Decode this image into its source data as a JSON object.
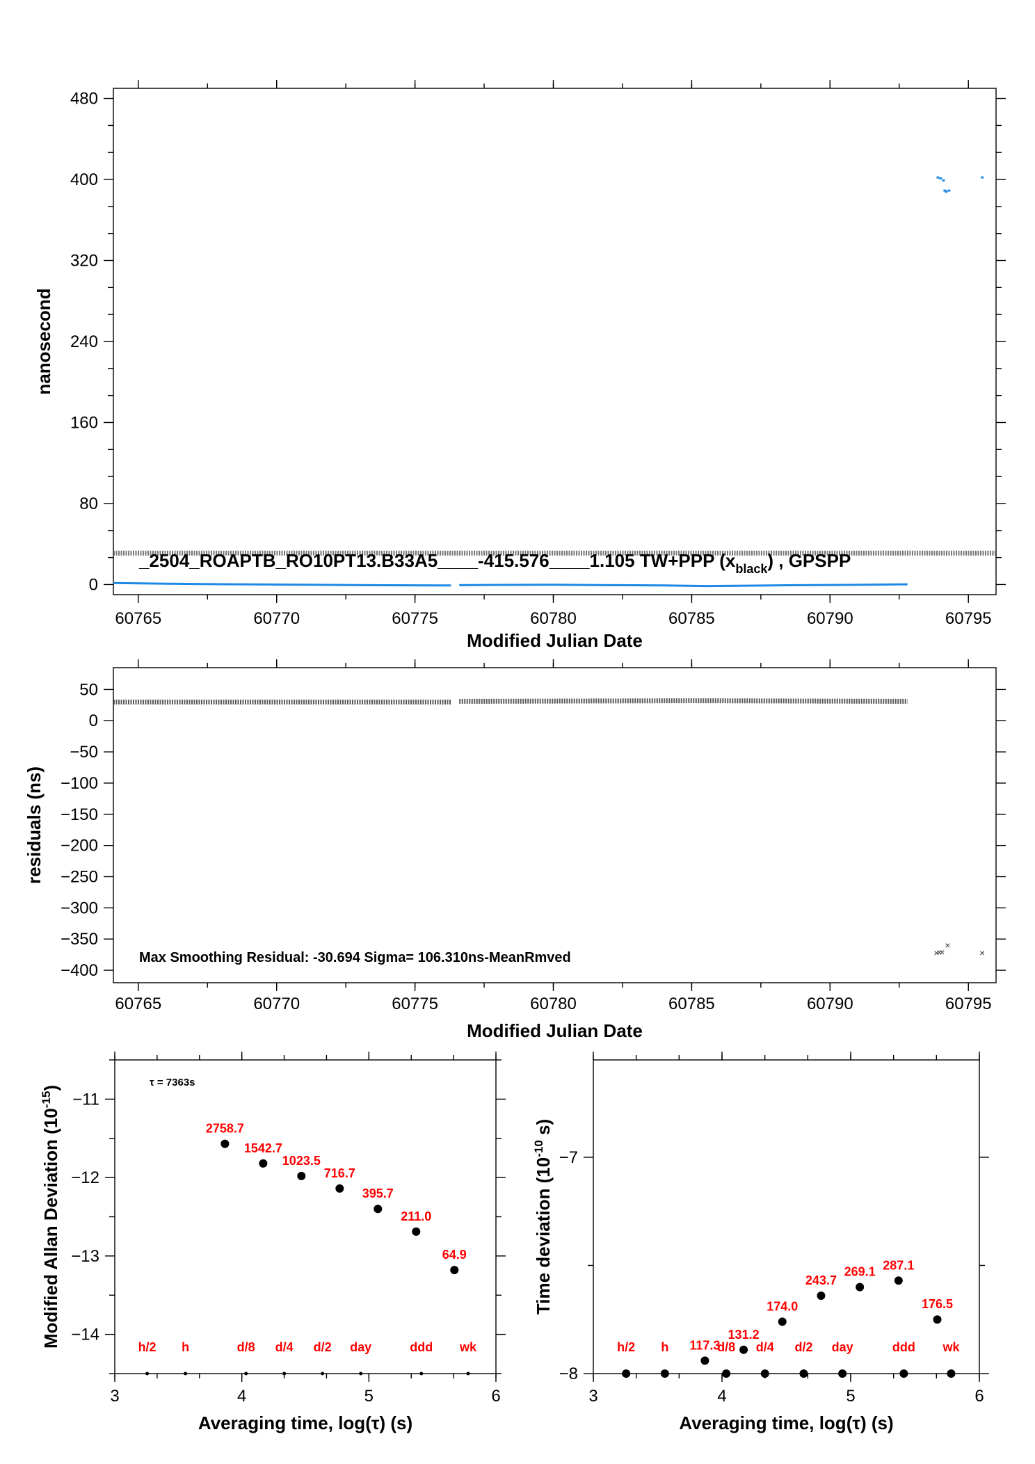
{
  "chart_data": [
    {
      "type": "scatter",
      "panel": "phase",
      "xlabel": "Modified Julian Date",
      "ylabel": "nanosecond",
      "xlim": [
        60764.1,
        60796.0
      ],
      "ylim": [
        -10,
        490
      ],
      "xticks": [
        60765,
        60770,
        60775,
        60780,
        60785,
        60790,
        60795
      ],
      "xtick_labels": [
        "60765",
        "60770",
        "60775",
        "60780",
        "60785",
        "60790",
        "60795"
      ],
      "yticks": [
        0,
        80,
        160,
        240,
        320,
        400,
        480
      ],
      "ytick_labels": [
        "0",
        "80",
        "160",
        "240",
        "320",
        "400",
        "480"
      ],
      "annotation": {
        "text": "_2504_ROAPTB_RO10PT13.B33A5____-415.576____1.105     TW+PPP (x",
        "sub": "black",
        "tail": ") ,  GPSPP"
      },
      "series": [
        {
          "color": "#1e88e5",
          "segments": [
            {
              "x": [
                60764.1,
                60766,
                60768,
                60770,
                60772,
                60774,
                60776.3
              ],
              "y": [
                1.5,
                0.8,
                0.3,
                0.0,
                -0.4,
                -0.7,
                -0.9
              ]
            },
            {
              "x": [
                60776.6,
                60778,
                60780,
                60782,
                60784,
                60785.5,
                60787,
                60789,
                60791,
                60792.8
              ],
              "y": [
                -0.6,
                -0.4,
                -0.2,
                -0.6,
                -0.9,
                -1.5,
                -1.2,
                -0.6,
                -0.3,
                0.2
              ]
            }
          ],
          "points": {
            "x": [
              60793.9,
              60794.0,
              60794.1,
              60794.15,
              60794.2,
              60794.3,
              60795.5
            ],
            "y": [
              402,
              401,
              399,
              389,
              388,
              389,
              402
            ]
          }
        },
        {
          "color": "#555555",
          "segments": [
            {
              "x": [
                60764.1,
                60796.0
              ],
              "y": [
                31,
                31
              ]
            }
          ]
        }
      ]
    },
    {
      "type": "scatter",
      "panel": "residuals",
      "xlabel": "Modified Julian Date",
      "ylabel": "residuals (ns)",
      "xlim": [
        60764.1,
        60796.0
      ],
      "ylim": [
        -420,
        85
      ],
      "xticks": [
        60765,
        60770,
        60775,
        60780,
        60785,
        60790,
        60795
      ],
      "xtick_labels": [
        "60765",
        "60770",
        "60775",
        "60780",
        "60785",
        "60790",
        "60795"
      ],
      "yticks": [
        50,
        0,
        -50,
        -100,
        -150,
        -200,
        -250,
        -300,
        -350,
        -400
      ],
      "ytick_labels": [
        "50",
        "0",
        "−50",
        "−100",
        "−150",
        "−200",
        "−250",
        "−300",
        "−350",
        "−400"
      ],
      "annotation": "Max Smoothing Residual: -30.694  Sigma= 106.310ns-MeanRmved",
      "series": [
        {
          "color": "#333333",
          "segments": [
            {
              "x": [
                60764.1,
                60776.3
              ],
              "y": [
                30,
                30
              ]
            },
            {
              "x": [
                60776.6,
                60785,
                60792.8
              ],
              "y": [
                31,
                32,
                31
              ]
            }
          ],
          "points": {
            "x": [
              60793.85,
              60793.95,
              60794.05,
              60794.25,
              60795.5
            ],
            "y": [
              -372,
              -371,
              -371,
              -360,
              -372
            ]
          }
        }
      ]
    },
    {
      "type": "scatter",
      "panel": "mdev",
      "xlabel": "Averaging time, log(τ) (s)",
      "ylabel": "Modified Allan Deviation (10",
      "ylabel_sup": "-15",
      "ylabel_tail": ")",
      "xlim": [
        3,
        6
      ],
      "ylim": [
        -14.5,
        -10.5
      ],
      "xticks": [
        3,
        4,
        5,
        6
      ],
      "xtick_labels": [
        "3",
        "4",
        "5",
        "6"
      ],
      "yticks": [
        -11,
        -12,
        -13,
        -14
      ],
      "ytick_labels": [
        "−11",
        "−12",
        "−13",
        "−14"
      ],
      "tau_note": "τ = 7363s",
      "points": [
        {
          "x": 3.867,
          "y": -11.57,
          "label": "2758.7"
        },
        {
          "x": 4.168,
          "y": -11.82,
          "label": "1542.7"
        },
        {
          "x": 4.469,
          "y": -11.98,
          "label": "1023.5"
        },
        {
          "x": 4.77,
          "y": -12.14,
          "label": "716.7"
        },
        {
          "x": 5.071,
          "y": -12.4,
          "label": "395.7"
        },
        {
          "x": 5.372,
          "y": -12.69,
          "label": "211.0"
        },
        {
          "x": 5.673,
          "y": -13.18,
          "label": "64.9"
        }
      ],
      "markers": [
        {
          "x": 3.255,
          "label": "h/2"
        },
        {
          "x": 3.556,
          "label": "h"
        },
        {
          "x": 4.033,
          "label": "d/8"
        },
        {
          "x": 4.334,
          "label": "d/4"
        },
        {
          "x": 4.635,
          "label": "d/2"
        },
        {
          "x": 4.936,
          "label": "day"
        },
        {
          "x": 5.413,
          "label": "ddd"
        },
        {
          "x": 5.781,
          "label": "wk"
        }
      ]
    },
    {
      "type": "scatter",
      "panel": "tdev",
      "xlabel": "Averaging time, log(τ) (s)",
      "ylabel": "Time deviation (10",
      "ylabel_sup": "-10",
      "ylabel_tail": " s)",
      "xlim": [
        3,
        6
      ],
      "ylim": [
        -8,
        -6.55
      ],
      "xticks": [
        3,
        4,
        5,
        6
      ],
      "xtick_labels": [
        "3",
        "4",
        "5",
        "6"
      ],
      "yticks": [
        -7,
        -8
      ],
      "ytick_labels": [
        "−7",
        "−8"
      ],
      "points": [
        {
          "x": 3.867,
          "y": -7.94,
          "label": "117.3"
        },
        {
          "x": 4.168,
          "y": -7.89,
          "label": "131.2"
        },
        {
          "x": 4.469,
          "y": -7.76,
          "label": "174.0"
        },
        {
          "x": 4.77,
          "y": -7.64,
          "label": "243.7"
        },
        {
          "x": 5.071,
          "y": -7.6,
          "label": "269.1"
        },
        {
          "x": 5.372,
          "y": -7.57,
          "label": "287.1"
        },
        {
          "x": 5.673,
          "y": -7.75,
          "label": "176.5"
        }
      ],
      "markers": [
        {
          "x": 3.255,
          "label": "h/2"
        },
        {
          "x": 3.556,
          "label": "h"
        },
        {
          "x": 4.033,
          "label": "d/8"
        },
        {
          "x": 4.334,
          "label": "d/4"
        },
        {
          "x": 4.635,
          "label": "d/2"
        },
        {
          "x": 4.936,
          "label": "day"
        },
        {
          "x": 5.413,
          "label": "ddd"
        },
        {
          "x": 5.781,
          "label": "wk"
        }
      ]
    }
  ]
}
